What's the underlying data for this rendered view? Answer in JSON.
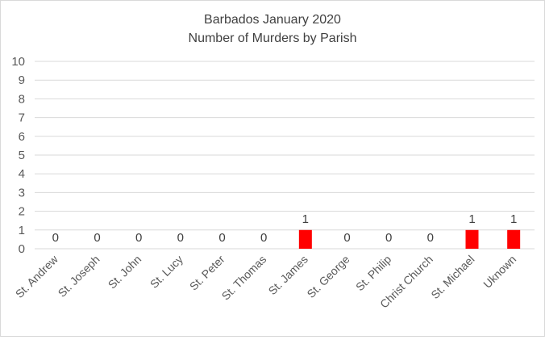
{
  "chart_data": {
    "type": "bar",
    "title": "Barbados January 2020",
    "subtitle": "Number of Murders by Parish",
    "categories": [
      "St. Andrew",
      "St. Joseph",
      "St. John",
      "St. Lucy",
      "St. Peter",
      "St. Thomas",
      "St. James",
      "St. George",
      "St. Philip",
      "Christ Church",
      "St. Michael",
      "Uknown"
    ],
    "values": [
      0,
      0,
      0,
      0,
      0,
      0,
      1,
      0,
      0,
      0,
      1,
      1
    ],
    "ylim": [
      0,
      10
    ],
    "yticks": [
      0,
      1,
      2,
      3,
      4,
      5,
      6,
      7,
      8,
      9,
      10
    ],
    "grid": true,
    "data_labels": true,
    "bar_color": "#ff0000",
    "gridline_color": "#d9d9d9",
    "xlabel": "",
    "ylabel": ""
  }
}
